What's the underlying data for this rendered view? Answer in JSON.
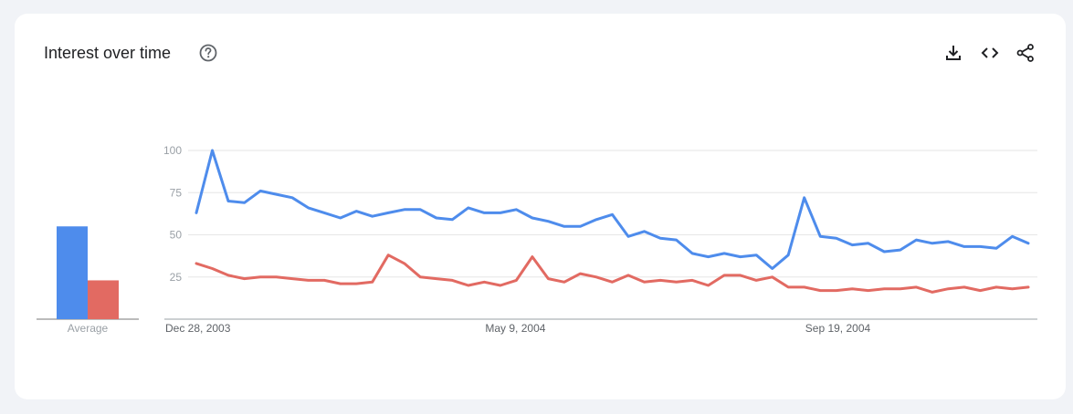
{
  "header": {
    "title": "Interest over time"
  },
  "toolbar": {
    "icons": [
      "download-icon",
      "embed-code-icon",
      "share-icon"
    ]
  },
  "colors": {
    "series1": "#4e8cec",
    "series2": "#e26a62",
    "grid": "#e6e6e6",
    "axis": "#9aa0a6"
  },
  "chart_data": [
    {
      "type": "bar",
      "categories": [
        "Average"
      ],
      "series": [
        {
          "values": [
            55
          ]
        },
        {
          "values": [
            23
          ]
        }
      ],
      "ylim": [
        0,
        100
      ]
    },
    {
      "type": "line",
      "x_tick_labels": [
        "Dec 28, 2003",
        "May 9, 2004",
        "Sep 19, 2004"
      ],
      "x_tick_index": [
        0,
        20,
        40
      ],
      "y_ticks": [
        25,
        50,
        75,
        100
      ],
      "ylim": [
        0,
        100
      ],
      "grid": true,
      "series": [
        {
          "values": [
            63,
            100,
            70,
            69,
            76,
            74,
            72,
            66,
            63,
            60,
            64,
            61,
            63,
            65,
            65,
            60,
            59,
            66,
            63,
            63,
            65,
            60,
            58,
            55,
            55,
            59,
            62,
            49,
            52,
            48,
            47,
            39,
            37,
            39,
            37,
            38,
            30,
            38,
            72,
            49,
            48,
            44,
            45,
            40,
            41,
            47,
            45,
            46,
            43,
            43,
            42,
            49,
            45
          ]
        },
        {
          "values": [
            33,
            30,
            26,
            24,
            25,
            25,
            24,
            23,
            23,
            21,
            21,
            22,
            38,
            33,
            25,
            24,
            23,
            20,
            22,
            20,
            23,
            37,
            24,
            22,
            27,
            25,
            22,
            26,
            22,
            23,
            22,
            23,
            20,
            26,
            26,
            23,
            25,
            19,
            19,
            17,
            17,
            18,
            17,
            18,
            18,
            19,
            16,
            18,
            19,
            17,
            19,
            18,
            19
          ]
        }
      ]
    }
  ]
}
